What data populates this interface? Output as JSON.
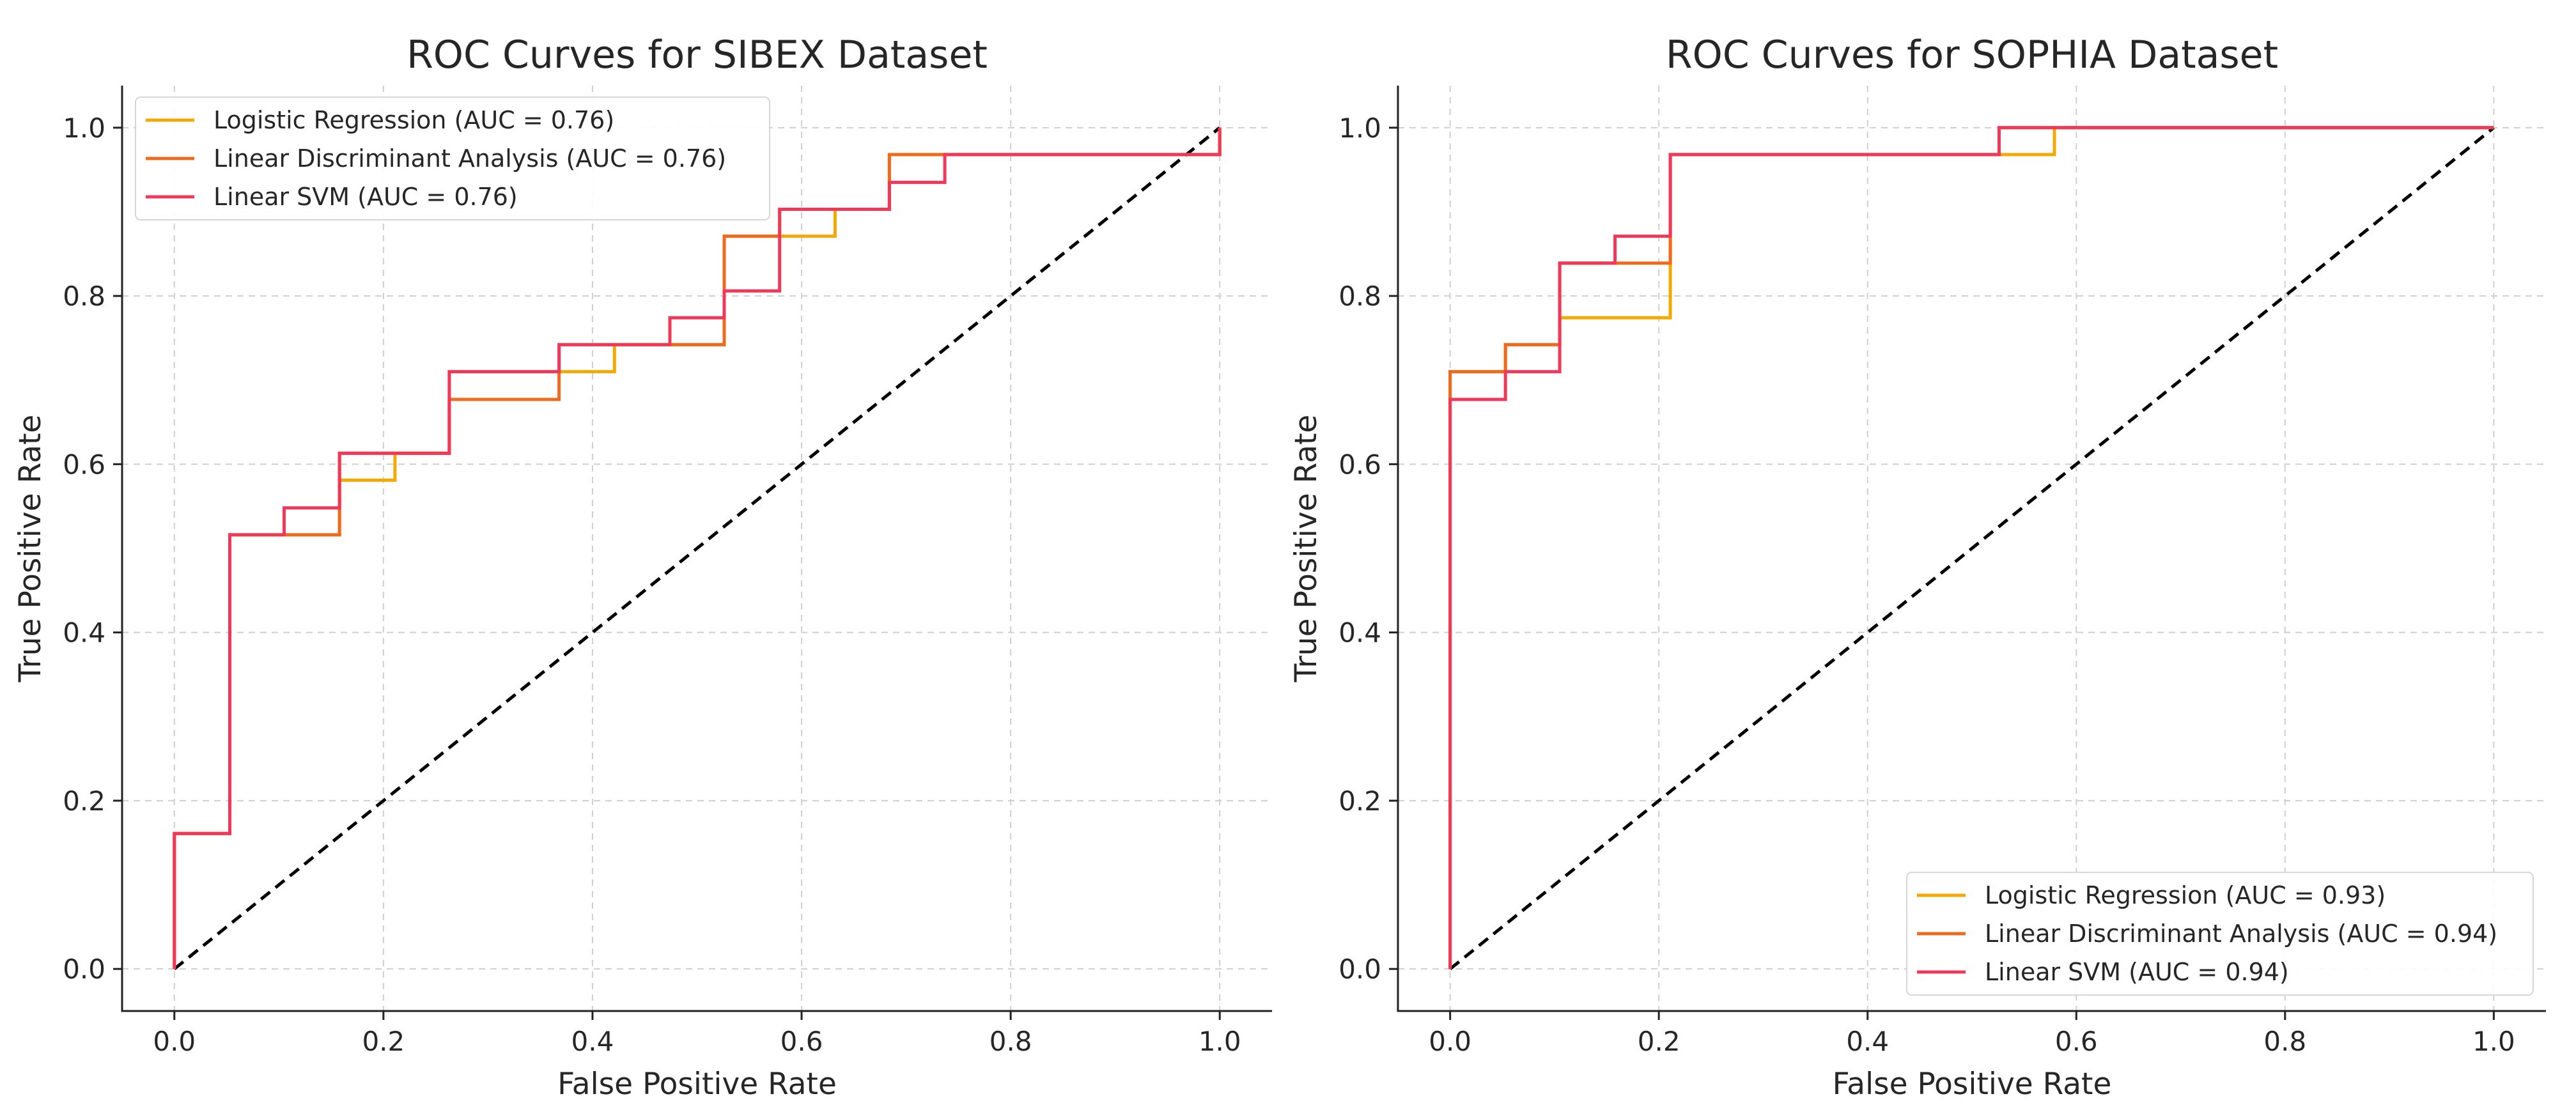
{
  "chart_data": [
    {
      "type": "line",
      "title": "ROC Curves for SIBEX Dataset",
      "xlabel": "False Positive Rate",
      "ylabel": "True Positive Rate",
      "xlim": [
        -0.05,
        1.05
      ],
      "ylim": [
        -0.05,
        1.05
      ],
      "xticks": [
        "0.0",
        "0.2",
        "0.4",
        "0.6",
        "0.8",
        "1.0"
      ],
      "yticks": [
        "0.0",
        "0.2",
        "0.4",
        "0.6",
        "0.8",
        "1.0"
      ],
      "grid": true,
      "legend_position": "top-left",
      "series": [
        {
          "name": "Logistic Regression (AUC = 0.76)",
          "color": "#F5A800",
          "x": [
            0,
            0,
            0.053,
            0.053,
            0.158,
            0.158,
            0.211,
            0.211,
            0.263,
            0.263,
            0.421,
            0.421,
            0.526,
            0.526,
            0.632,
            0.632,
            0.684,
            0.684,
            1.0,
            1.0
          ],
          "y": [
            0,
            0.161,
            0.161,
            0.516,
            0.516,
            0.581,
            0.581,
            0.613,
            0.613,
            0.71,
            0.71,
            0.742,
            0.742,
            0.871,
            0.871,
            0.903,
            0.903,
            0.968,
            0.968,
            1.0
          ]
        },
        {
          "name": "Linear Discriminant Analysis (AUC = 0.76)",
          "color": "#F06A1E",
          "x": [
            0,
            0,
            0.053,
            0.053,
            0.158,
            0.158,
            0.263,
            0.263,
            0.368,
            0.368,
            0.526,
            0.526,
            0.579,
            0.579,
            0.684,
            0.684,
            1.0,
            1.0
          ],
          "y": [
            0,
            0.161,
            0.161,
            0.516,
            0.516,
            0.613,
            0.613,
            0.677,
            0.677,
            0.742,
            0.742,
            0.871,
            0.871,
            0.903,
            0.903,
            0.968,
            0.968,
            1.0
          ]
        },
        {
          "name": "Linear SVM (AUC = 0.76)",
          "color": "#F2385A",
          "x": [
            0,
            0,
            0.053,
            0.053,
            0.105,
            0.105,
            0.158,
            0.158,
            0.263,
            0.263,
            0.368,
            0.368,
            0.474,
            0.474,
            0.526,
            0.526,
            0.579,
            0.579,
            0.684,
            0.684,
            0.737,
            0.737,
            1.0,
            1.0
          ],
          "y": [
            0,
            0.161,
            0.161,
            0.516,
            0.516,
            0.548,
            0.548,
            0.613,
            0.613,
            0.71,
            0.71,
            0.742,
            0.742,
            0.774,
            0.774,
            0.806,
            0.806,
            0.903,
            0.903,
            0.935,
            0.935,
            0.968,
            0.968,
            1.0
          ]
        }
      ],
      "reference_line": {
        "x": [
          0,
          1
        ],
        "y": [
          0,
          1
        ],
        "style": "dashed",
        "color": "#000000"
      }
    },
    {
      "type": "line",
      "title": "ROC Curves for SOPHIA Dataset",
      "xlabel": "False Positive Rate",
      "ylabel": "True Positive Rate",
      "xlim": [
        -0.05,
        1.05
      ],
      "ylim": [
        -0.05,
        1.05
      ],
      "xticks": [
        "0.0",
        "0.2",
        "0.4",
        "0.6",
        "0.8",
        "1.0"
      ],
      "yticks": [
        "0.0",
        "0.2",
        "0.4",
        "0.6",
        "0.8",
        "1.0"
      ],
      "grid": true,
      "legend_position": "bottom-right",
      "series": [
        {
          "name": "Logistic Regression (AUC = 0.93)",
          "color": "#F5A800",
          "x": [
            0,
            0,
            0.053,
            0.053,
            0.105,
            0.105,
            0.211,
            0.211,
            0.579,
            0.579,
            1.0
          ],
          "y": [
            0,
            0.71,
            0.71,
            0.742,
            0.742,
            0.774,
            0.774,
            0.968,
            0.968,
            1.0,
            1.0
          ]
        },
        {
          "name": "Linear Discriminant Analysis (AUC = 0.94)",
          "color": "#F06A1E",
          "x": [
            0,
            0,
            0.053,
            0.053,
            0.105,
            0.105,
            0.211,
            0.211,
            0.526,
            0.526,
            1.0
          ],
          "y": [
            0,
            0.71,
            0.71,
            0.742,
            0.742,
            0.839,
            0.839,
            0.968,
            0.968,
            1.0,
            1.0
          ]
        },
        {
          "name": "Linear SVM (AUC = 0.94)",
          "color": "#F2385A",
          "x": [
            0,
            0,
            0.053,
            0.053,
            0.105,
            0.105,
            0.158,
            0.158,
            0.211,
            0.211,
            0.526,
            0.526,
            1.0
          ],
          "y": [
            0,
            0.677,
            0.677,
            0.71,
            0.71,
            0.839,
            0.839,
            0.871,
            0.871,
            0.968,
            0.968,
            1.0,
            1.0
          ]
        }
      ],
      "reference_line": {
        "x": [
          0,
          1
        ],
        "y": [
          0,
          1
        ],
        "style": "dashed",
        "color": "#000000"
      }
    }
  ]
}
